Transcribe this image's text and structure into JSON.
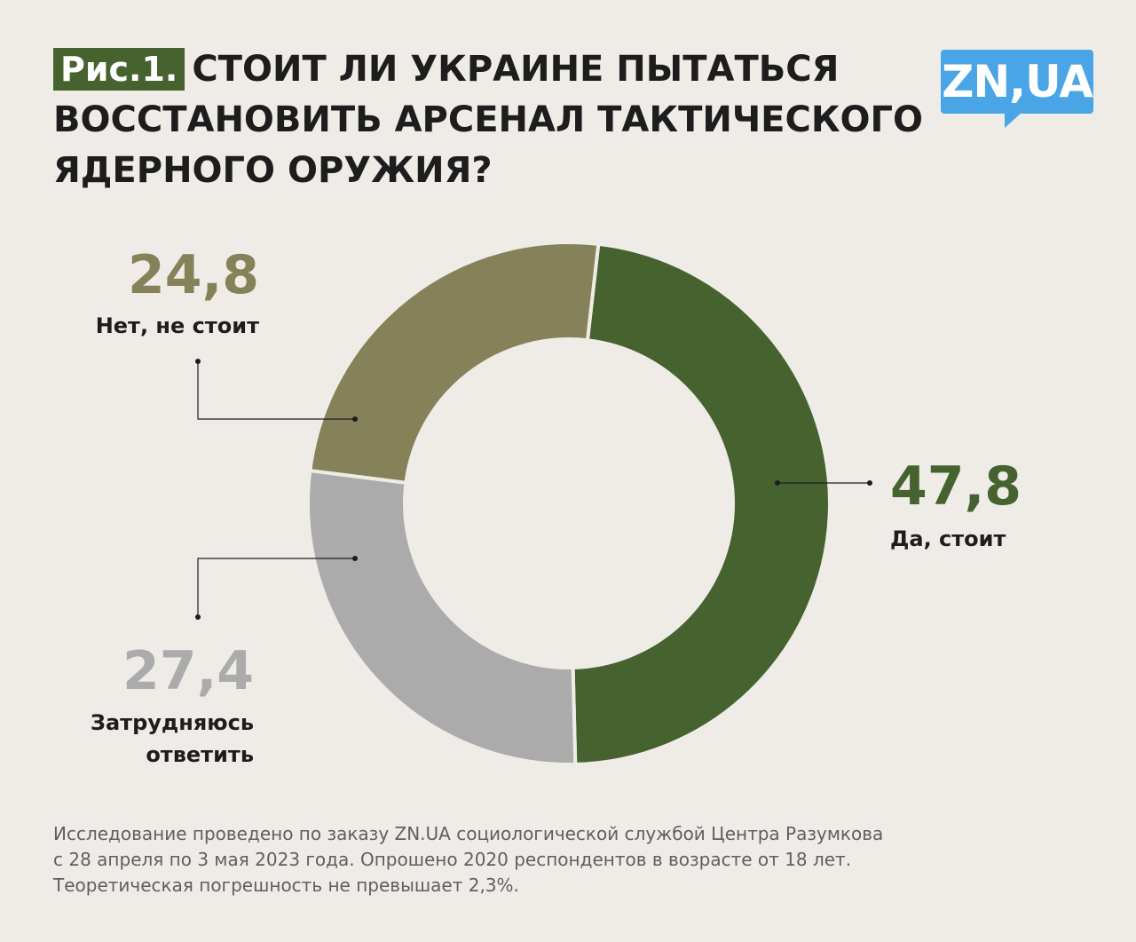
{
  "header": {
    "fig_label": "Рис.1.",
    "title_lines": [
      "СТОИТ ЛИ УКРАИНЕ ПЫТАТЬСЯ",
      "ВОССТАНОВИТЬ АРСЕНАЛ ТАКТИЧЕСКОГО",
      "ЯДЕРНОГО ОРУЖИЯ?"
    ]
  },
  "logo": {
    "text": "ZN,UA",
    "color": "#4aa5e6"
  },
  "colors": {
    "background": "#efece8",
    "accent": "#46622f"
  },
  "chart_data": {
    "type": "pie",
    "donut": true,
    "slices": [
      {
        "label": "Да, стоит",
        "value": 47.8,
        "value_label": "47,8",
        "color": "#46622f"
      },
      {
        "label": "Затрудняюсь ответить",
        "label_lines": [
          "Затрудняюсь",
          "ответить"
        ],
        "value": 27.4,
        "value_label": "27,4",
        "color": "#ababab"
      },
      {
        "label": "Нет, не стоит",
        "value": 24.8,
        "value_label": "24,8",
        "color": "#858259"
      }
    ]
  },
  "footnote": {
    "lines": [
      "Исследование проведено по заказу ZN.UA социологической службой Центра Разумкова",
      "с 28 апреля  по 3 мая 2023 года. Опрошено 2020 респондентов в возрасте от 18 лет.",
      "Теоретическая погрешность не превышает 2,3%."
    ]
  }
}
